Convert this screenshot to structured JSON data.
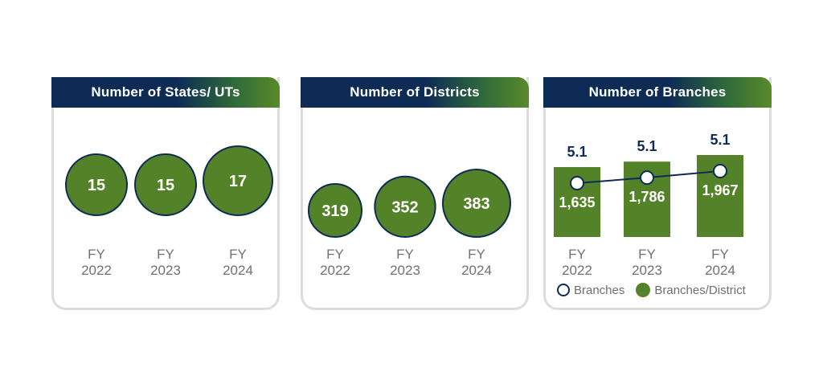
{
  "colors": {
    "navy": "#0d2b55",
    "green": "#548228",
    "tick": "#707070",
    "border": "#dcdcdc"
  },
  "panels": [
    {
      "title": "Number of States/ UTs"
    },
    {
      "title": "Number of Districts"
    },
    {
      "title": "Number of Branches"
    }
  ],
  "legend": {
    "branches": "Branches",
    "branches_per_district": "Branches/District"
  },
  "chart_data": [
    {
      "type": "bubble",
      "title": "Number of States/ UTs",
      "categories": [
        "FY 2022",
        "FY 2023",
        "FY 2024"
      ],
      "values": [
        15,
        15,
        17
      ]
    },
    {
      "type": "bubble",
      "title": "Number of Districts",
      "categories": [
        "FY 2022",
        "FY 2023",
        "FY 2024"
      ],
      "values": [
        319,
        352,
        383
      ]
    },
    {
      "type": "bar",
      "title": "Number of Branches",
      "categories": [
        "FY 2022",
        "FY 2023",
        "FY 2024"
      ],
      "legend": "bottom",
      "series": [
        {
          "name": "Branches",
          "values": [
            1635,
            1786,
            1967
          ],
          "labels": [
            "1,635",
            "1,786",
            "1,967"
          ],
          "render": "line-with-markers"
        },
        {
          "name": "Branches/District",
          "values": [
            5.1,
            5.1,
            5.1
          ],
          "labels": [
            "5.1",
            "5.1",
            "5.1"
          ],
          "render": "bars"
        }
      ]
    }
  ]
}
